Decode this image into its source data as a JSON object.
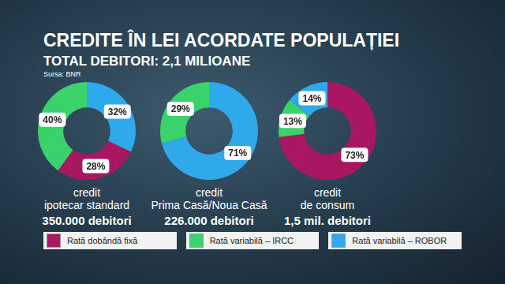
{
  "title": "CREDITE ÎN LEI ACORDATE POPULAȚIEI",
  "subtitle": "TOTAL DEBITORI: 2,1 MILIOANE",
  "source": "Sursa: BNR",
  "legend_entries": [
    {
      "name": "Rată dobândă fixă",
      "color": "#a8175f"
    },
    {
      "name": "Rată variabilă – IRCC",
      "color": "#3ad36b"
    },
    {
      "name": "Rată variabilă – ROBOR",
      "color": "#2ea9ec"
    }
  ],
  "chart_data": [
    {
      "type": "doughnut",
      "title": [
        "credit",
        "ipotecar standard"
      ],
      "subtitle": "350.000 debitori",
      "categories": [
        "Rată variabilă – ROBOR",
        "Rată dobândă fixă",
        "Rată variabilă – IRCC"
      ],
      "values": [
        32,
        28,
        40
      ],
      "value_labels": [
        "32%",
        "28%",
        "40%"
      ],
      "colors": [
        "#2ea9ec",
        "#a8175f",
        "#3ad36b"
      ],
      "data_labels": true
    },
    {
      "type": "doughnut",
      "title": [
        "credit",
        "Prima Casă/Noua Casă"
      ],
      "subtitle": "226.000 debitori",
      "categories": [
        "Rată variabilă – ROBOR",
        "Rată variabilă – IRCC"
      ],
      "values": [
        71,
        29
      ],
      "value_labels": [
        "71%",
        "29%"
      ],
      "colors": [
        "#2ea9ec",
        "#3ad36b"
      ],
      "data_labels": true
    },
    {
      "type": "doughnut",
      "title": [
        "credit",
        "de consum"
      ],
      "subtitle": "1,5 mil. debitori",
      "categories": [
        "Rată dobândă fixă",
        "Rată variabilă – IRCC",
        "Rată variabilă – ROBOR"
      ],
      "values": [
        73,
        13,
        14
      ],
      "value_labels": [
        "73%",
        "13%",
        "14%"
      ],
      "colors": [
        "#a8175f",
        "#3ad36b",
        "#2ea9ec"
      ],
      "data_labels": true
    }
  ]
}
